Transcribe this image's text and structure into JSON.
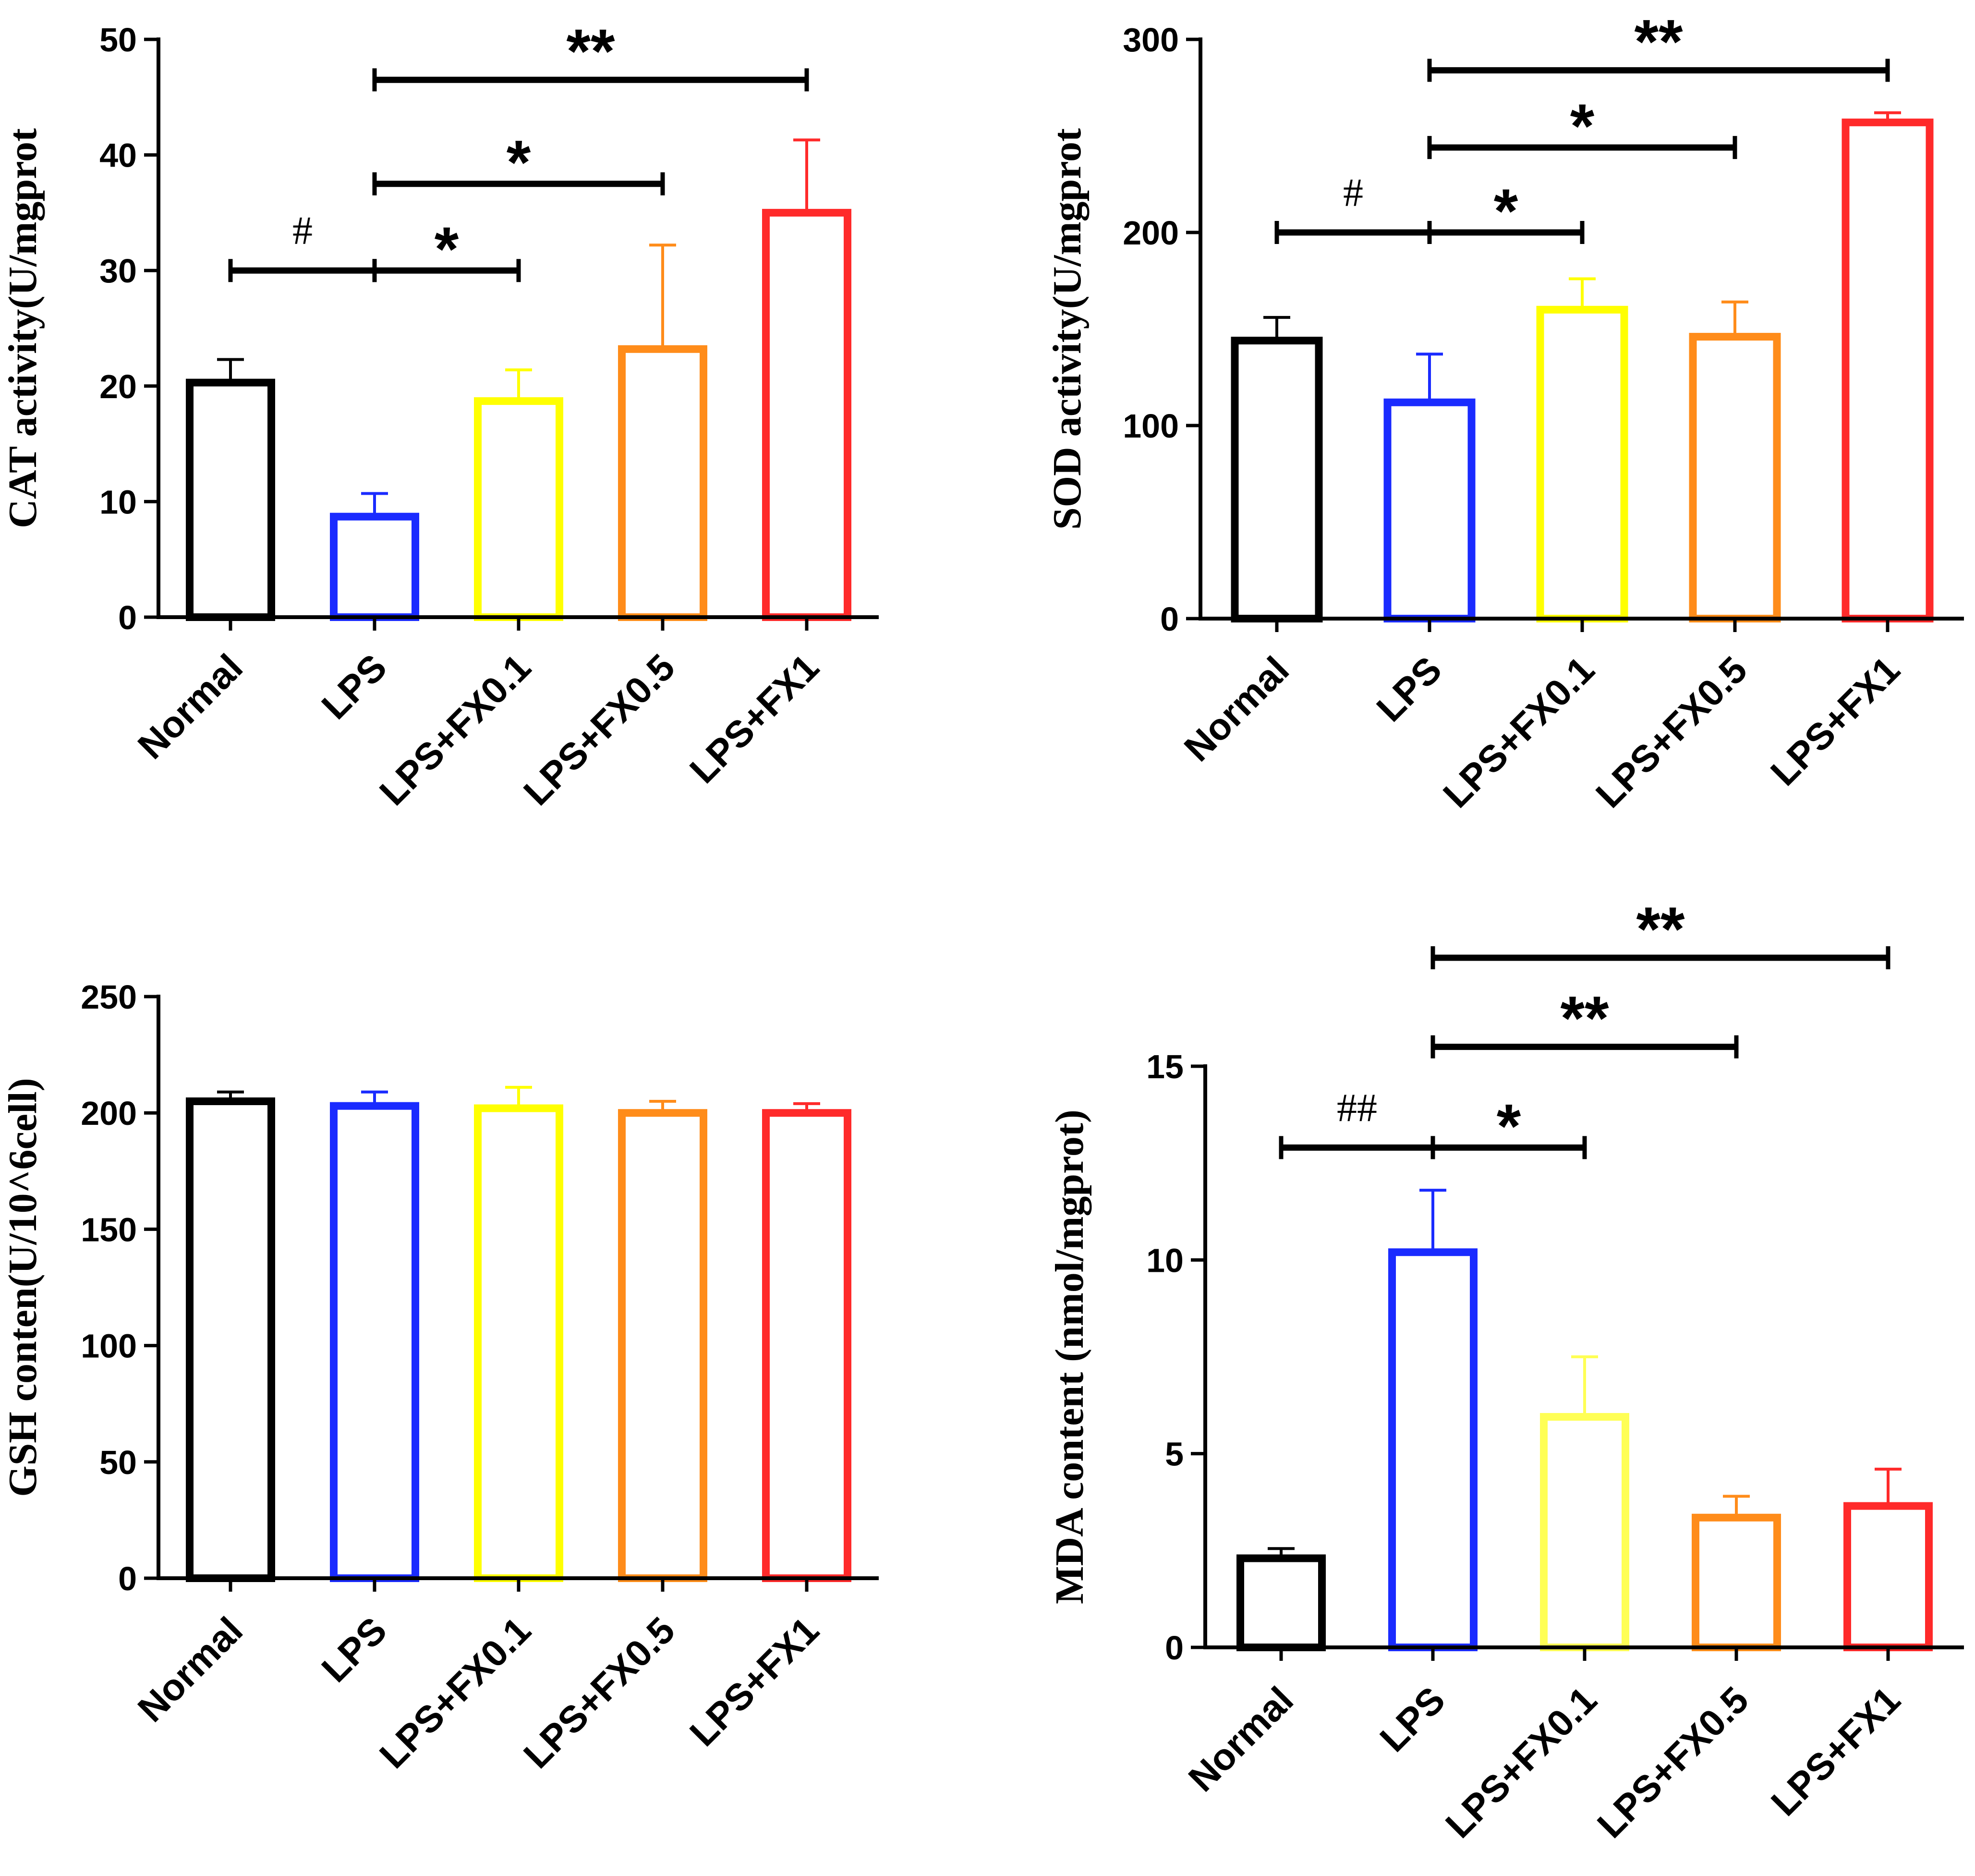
{
  "chart_data": [
    {
      "type": "bar",
      "title": "",
      "xlabel": "",
      "ylabel": "CAT activity(U/mgprot",
      "categories": [
        "Normal",
        "LPS",
        "LPS+FX0.1",
        "LPS+FX0.5",
        "LPS+FX1"
      ],
      "values": [
        20.3,
        8.7,
        18.7,
        23.2,
        35.0
      ],
      "errors": [
        2.0,
        2.0,
        2.7,
        9.0,
        6.3
      ],
      "colors": [
        "#000000",
        "#1a2bff",
        "#ffff00",
        "#ff8c1a",
        "#ff2a2a"
      ],
      "ylim": [
        0,
        50
      ],
      "yticks": [
        0,
        10,
        20,
        30,
        40,
        50
      ],
      "annotations": [
        {
          "from": 0,
          "to": 1,
          "label": "#",
          "y": 30
        },
        {
          "from": 1,
          "to": 2,
          "label": "*",
          "y": 30
        },
        {
          "from": 1,
          "to": 3,
          "label": "*",
          "y": 37.5
        },
        {
          "from": 1,
          "to": 4,
          "label": "**",
          "y": 46.5
        }
      ]
    },
    {
      "type": "bar",
      "title": "",
      "xlabel": "",
      "ylabel": "SOD activity(U/mgprot",
      "categories": [
        "Normal",
        "LPS",
        "LPS+FX0.1",
        "LPS+FX0.5",
        "LPS+FX1"
      ],
      "values": [
        144,
        112,
        160,
        146,
        257
      ],
      "errors": [
        12,
        25,
        16,
        18,
        5
      ],
      "colors": [
        "#000000",
        "#1a2bff",
        "#ffff00",
        "#ff8c1a",
        "#ff2a2a"
      ],
      "ylim": [
        0,
        300
      ],
      "yticks": [
        0,
        100,
        200,
        300
      ],
      "annotations": [
        {
          "from": 0,
          "to": 1,
          "label": "#",
          "y": 200
        },
        {
          "from": 1,
          "to": 2,
          "label": "*",
          "y": 200
        },
        {
          "from": 1,
          "to": 3,
          "label": "*",
          "y": 244
        },
        {
          "from": 1,
          "to": 4,
          "label": "**",
          "y": 284
        }
      ]
    },
    {
      "type": "bar",
      "title": "",
      "xlabel": "",
      "ylabel": "GSH conten(U/10^6cell)",
      "categories": [
        "Normal",
        "LPS",
        "LPS+FX0.1",
        "LPS+FX0.5",
        "LPS+FX1"
      ],
      "values": [
        205,
        203,
        202,
        200,
        200
      ],
      "errors": [
        4,
        6,
        9,
        5,
        4
      ],
      "colors": [
        "#000000",
        "#1a2bff",
        "#ffff00",
        "#ff8c1a",
        "#ff2a2a"
      ],
      "ylim": [
        0,
        250
      ],
      "yticks": [
        0,
        50,
        100,
        150,
        200,
        250
      ],
      "annotations": []
    },
    {
      "type": "bar",
      "title": "",
      "xlabel": "",
      "ylabel": "MDA content (nmol/mgprot)",
      "categories": [
        "Normal",
        "LPS",
        "LPS+FX0.1",
        "LPS+FX0.5",
        "LPS+FX1"
      ],
      "values": [
        2.3,
        10.2,
        5.95,
        3.35,
        3.65
      ],
      "errors": [
        0.25,
        1.6,
        1.55,
        0.55,
        0.95
      ],
      "colors": [
        "#000000",
        "#1a2bff",
        "#ffff55",
        "#ff8c1a",
        "#ff2a2a"
      ],
      "ylim": [
        0,
        15
      ],
      "yticks": [
        0,
        5,
        10,
        15
      ],
      "annotations": [
        {
          "from": 0,
          "to": 1,
          "label": "##",
          "y": 12.9
        },
        {
          "from": 1,
          "to": 2,
          "label": "*",
          "y": 12.9
        },
        {
          "from": 1,
          "to": 3,
          "label": "**",
          "y": 15.5
        },
        {
          "from": 1,
          "to": 4,
          "label": "**",
          "y": 17.8
        }
      ]
    }
  ]
}
